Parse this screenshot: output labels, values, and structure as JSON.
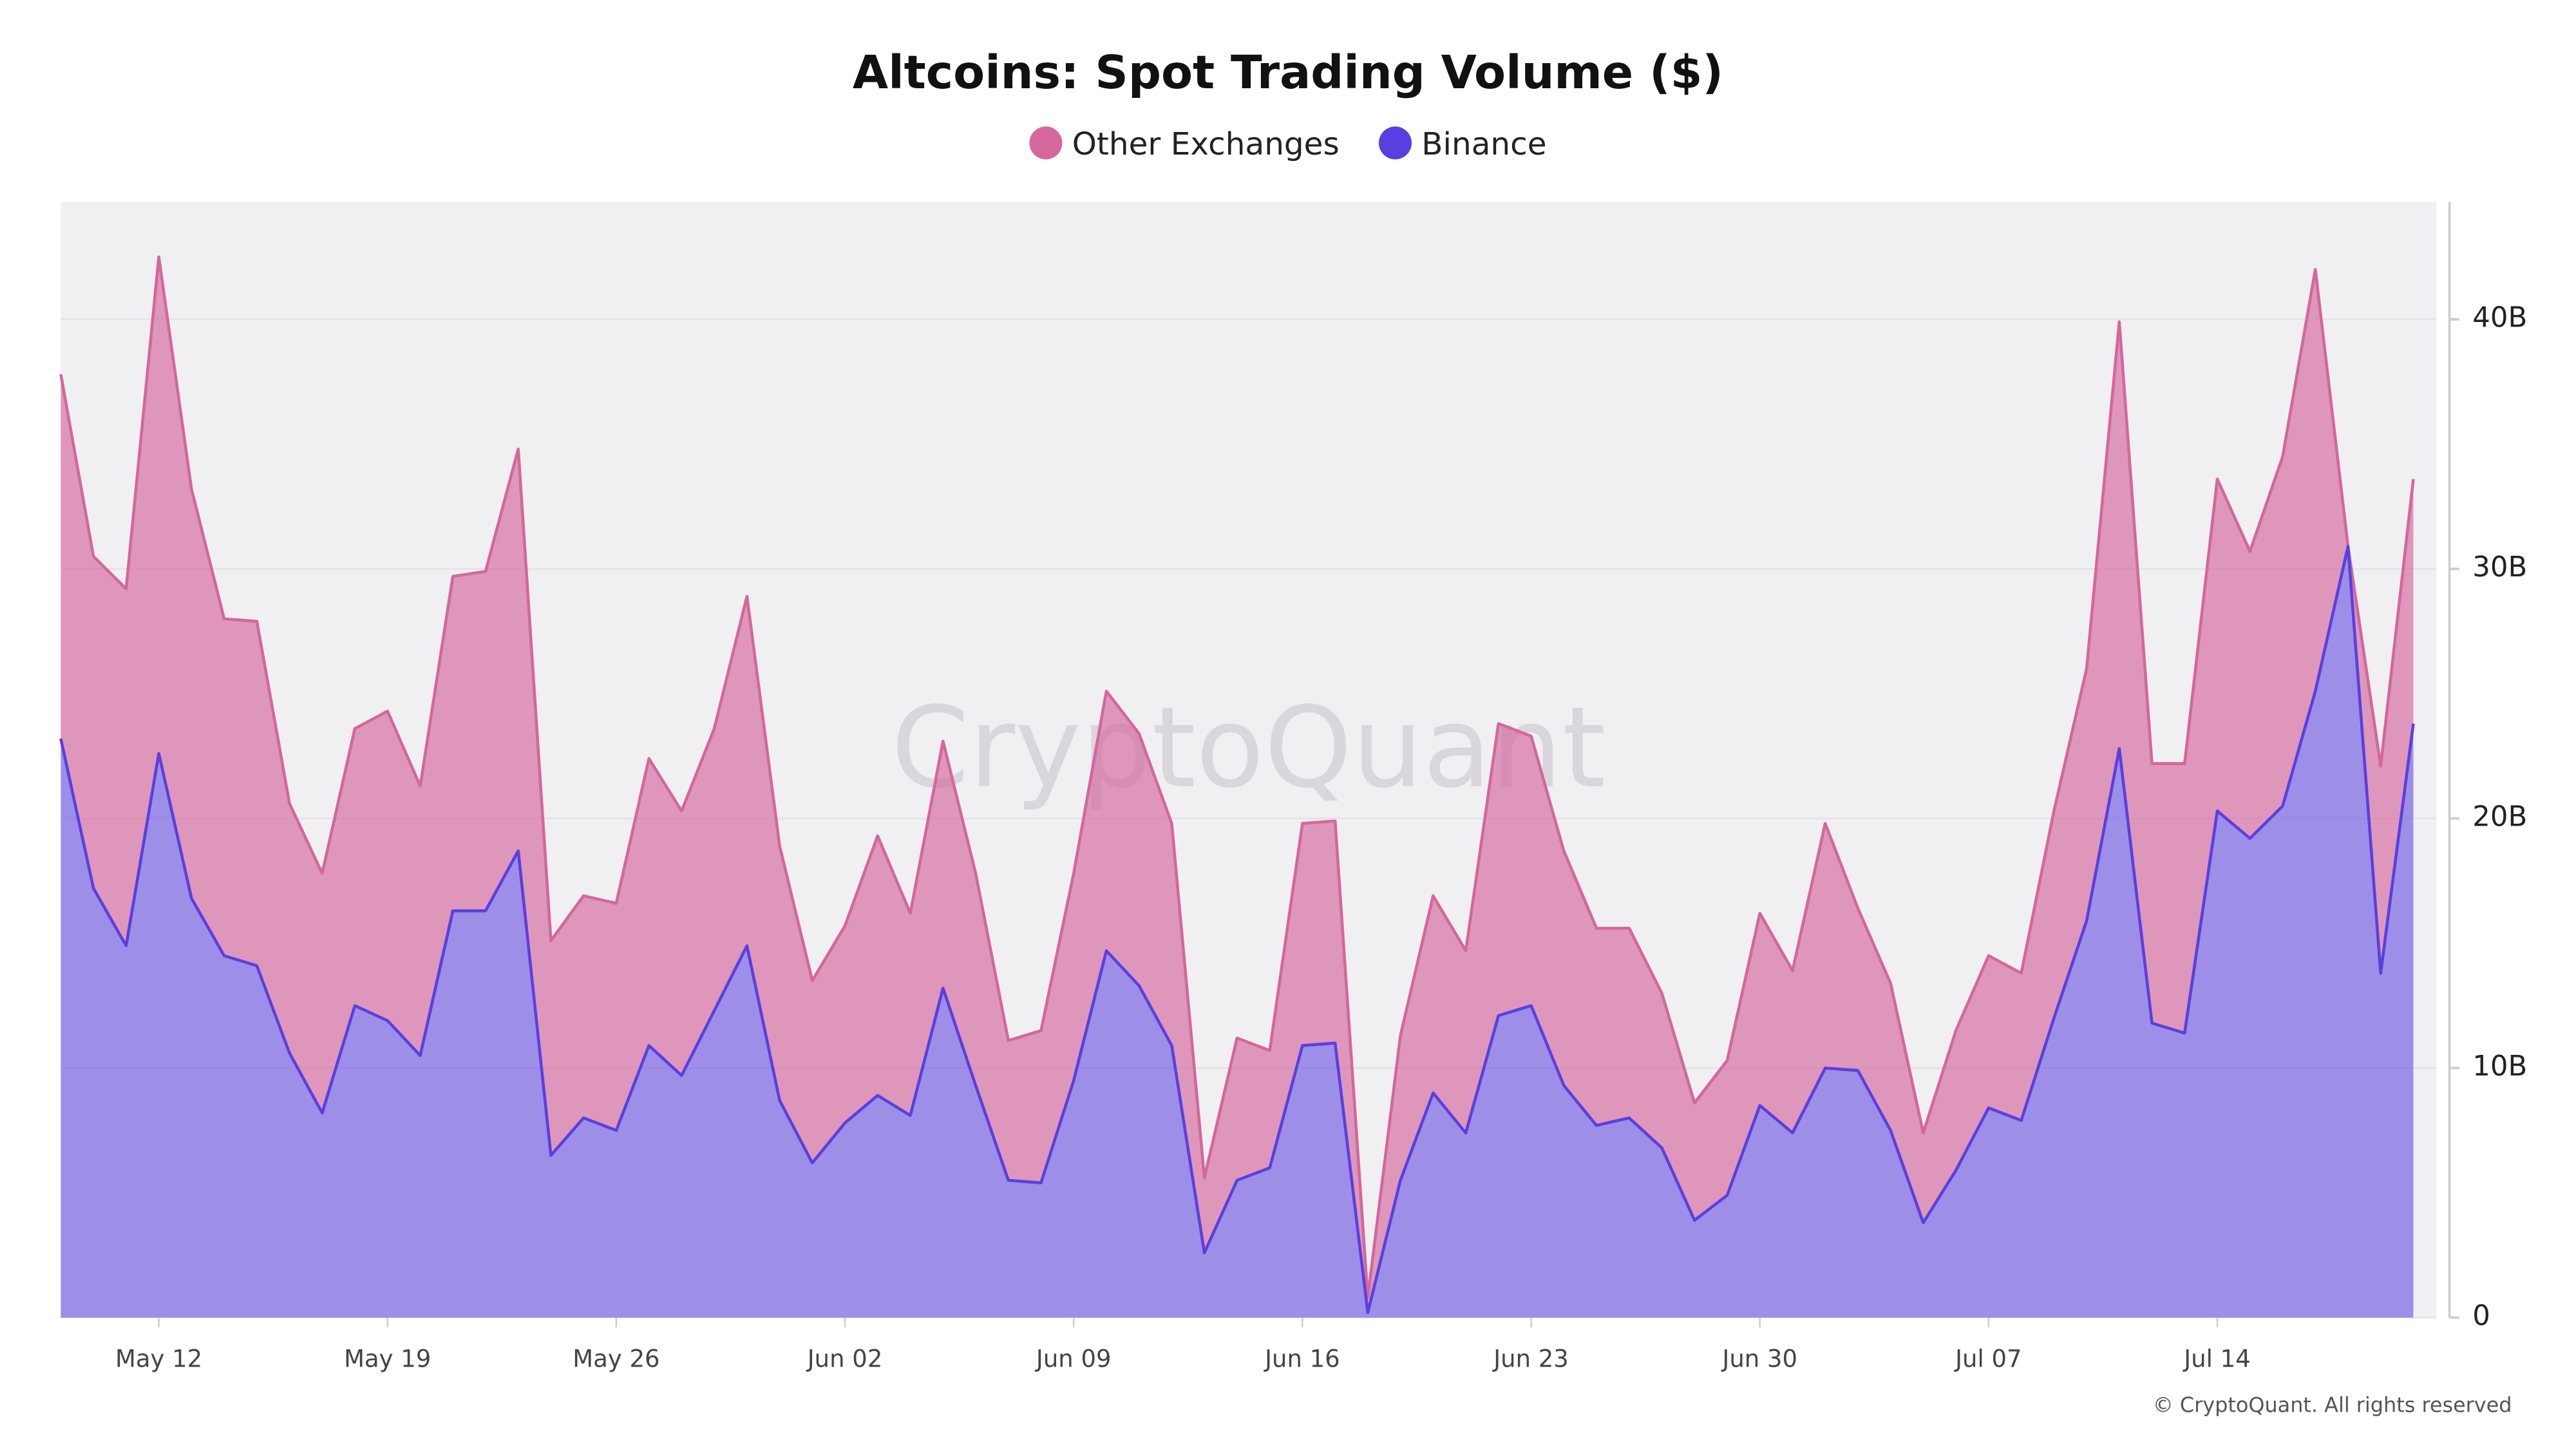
{
  "chart_data": {
    "type": "stacked_area",
    "title": "Altcoins: Spot Trading Volume ($)",
    "watermark": "CryptoQuant",
    "copyright": "© CryptoQuant. All rights reserved",
    "x": [
      "May 09",
      "May 10",
      "May 11",
      "May 12",
      "May 13",
      "May 14",
      "May 15",
      "May 16",
      "May 17",
      "May 18",
      "May 19",
      "May 20",
      "May 21",
      "May 22",
      "May 23",
      "May 24",
      "May 25",
      "May 26",
      "May 27",
      "May 28",
      "May 29",
      "May 30",
      "May 31",
      "Jun 01",
      "Jun 02",
      "Jun 03",
      "Jun 04",
      "Jun 05",
      "Jun 06",
      "Jun 07",
      "Jun 08",
      "Jun 09",
      "Jun 10",
      "Jun 11",
      "Jun 12",
      "Jun 13",
      "Jun 14",
      "Jun 15",
      "Jun 16",
      "Jun 17",
      "Jun 18",
      "Jun 19",
      "Jun 20",
      "Jun 21",
      "Jun 22",
      "Jun 23",
      "Jun 24",
      "Jun 25",
      "Jun 26",
      "Jun 27",
      "Jun 28",
      "Jun 29",
      "Jun 30",
      "Jul 01",
      "Jul 02",
      "Jul 03",
      "Jul 04",
      "Jul 05",
      "Jul 06",
      "Jul 07",
      "Jul 08",
      "Jul 09",
      "Jul 10",
      "Jul 11",
      "Jul 12",
      "Jul 13",
      "Jul 14",
      "Jul 15",
      "Jul 16",
      "Jul 17",
      "Jul 18",
      "Jul 19",
      "Jul 20"
    ],
    "xticks": [
      "May 12",
      "May 19",
      "May 26",
      "Jun 02",
      "Jun 09",
      "Jun 16",
      "Jun 23",
      "Jun 30",
      "Jul 07",
      "Jul 14"
    ],
    "series": [
      {
        "name": "Other Exchanges",
        "color": "#d4679c",
        "values": [
          14.6,
          13.3,
          14.3,
          19.9,
          16.4,
          13.5,
          13.8,
          10.0,
          9.6,
          11.1,
          12.4,
          10.8,
          13.4,
          13.6,
          16.1,
          8.6,
          8.9,
          9.1,
          11.5,
          10.6,
          11.3,
          14.0,
          10.2,
          7.3,
          7.9,
          10.4,
          8.1,
          9.9,
          8.5,
          5.6,
          6.1,
          8.3,
          10.4,
          10.1,
          8.9,
          3.0,
          5.7,
          4.7,
          8.9,
          8.9,
          0.6,
          5.8,
          7.9,
          7.3,
          11.7,
          10.8,
          9.4,
          7.9,
          7.6,
          6.2,
          4.7,
          5.4,
          7.7,
          6.5,
          9.8,
          6.5,
          5.9,
          3.6,
          5.6,
          6.1,
          5.9,
          8.3,
          10.1,
          17.1,
          10.4,
          10.8,
          13.3,
          11.5,
          14.0,
          16.9,
          0.0,
          8.3,
          9.8
        ]
      },
      {
        "name": "Binance",
        "color": "#5a3fe0",
        "values": [
          23.2,
          17.2,
          14.9,
          22.6,
          16.8,
          14.5,
          14.1,
          10.6,
          8.2,
          12.5,
          11.9,
          10.5,
          16.3,
          16.3,
          18.7,
          6.5,
          8.0,
          7.5,
          10.9,
          9.7,
          12.3,
          14.9,
          8.7,
          6.2,
          7.8,
          8.9,
          8.1,
          13.2,
          9.3,
          5.5,
          5.4,
          9.5,
          14.7,
          13.3,
          10.9,
          2.6,
          5.5,
          6.0,
          10.9,
          11.0,
          0.2,
          5.5,
          9.0,
          7.4,
          12.1,
          12.5,
          9.3,
          7.7,
          8.0,
          6.8,
          3.9,
          4.9,
          8.5,
          7.4,
          10.0,
          9.9,
          7.5,
          3.8,
          5.9,
          8.4,
          7.9,
          12.0,
          15.9,
          22.8,
          11.8,
          11.4,
          20.3,
          19.2,
          20.5,
          25.1,
          30.9,
          13.8,
          23.8
        ]
      }
    ],
    "ylim": [
      0,
      44.7
    ],
    "yticks": [
      {
        "value": 0,
        "label": "0"
      },
      {
        "value": 10,
        "label": "10B"
      },
      {
        "value": 20,
        "label": "20B"
      },
      {
        "value": 30,
        "label": "30B"
      },
      {
        "value": 40,
        "label": "40B"
      }
    ],
    "grid": true,
    "y_axis_side": "right",
    "legend": "top"
  }
}
